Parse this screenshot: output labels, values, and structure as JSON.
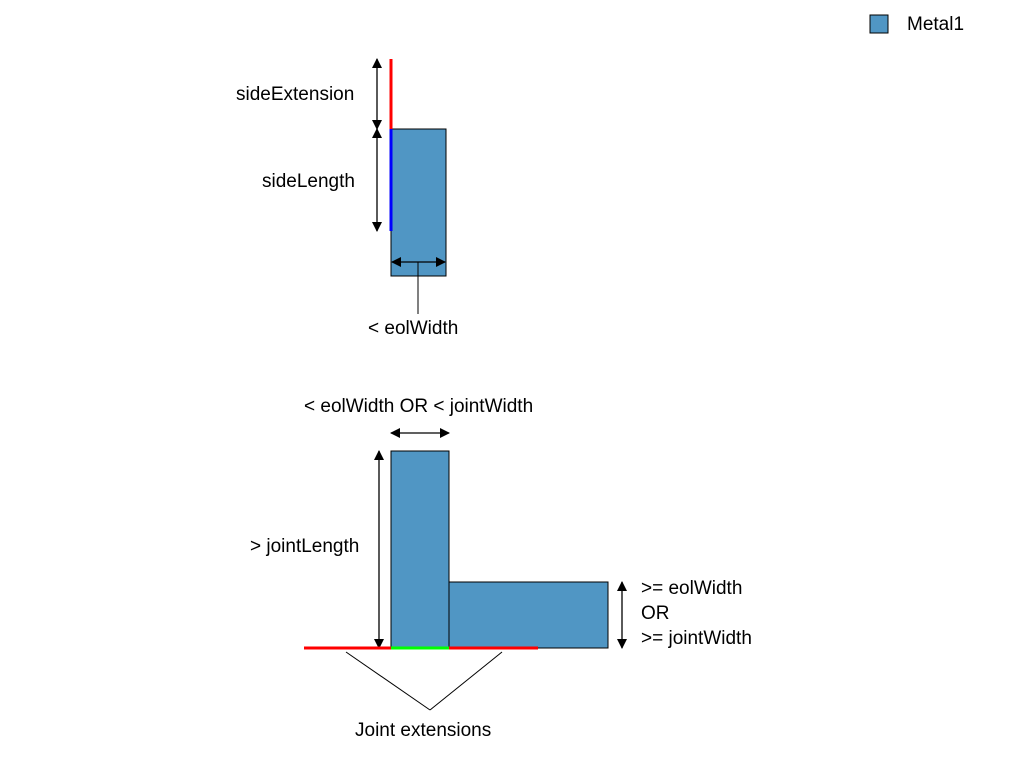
{
  "legend": {
    "label": "Metal1",
    "swatch_color": "#5096c4"
  },
  "colors": {
    "metal_fill": "#5096c4",
    "edge_red": "#ff0000",
    "edge_blue": "#0000ff",
    "edge_green": "#00ff00"
  },
  "top_diagram": {
    "side_extension_label": "sideExtension",
    "side_length_label": "sideLength",
    "eol_width_label": "< eolWidth"
  },
  "bottom_diagram": {
    "width_label": "< eolWidth OR < jointWidth",
    "joint_length_label": "> jointLength",
    "right_width_line1": ">= eolWidth",
    "right_width_line2": "OR",
    "right_width_line3": ">= jointWidth",
    "joint_extensions_label": "Joint extensions"
  }
}
